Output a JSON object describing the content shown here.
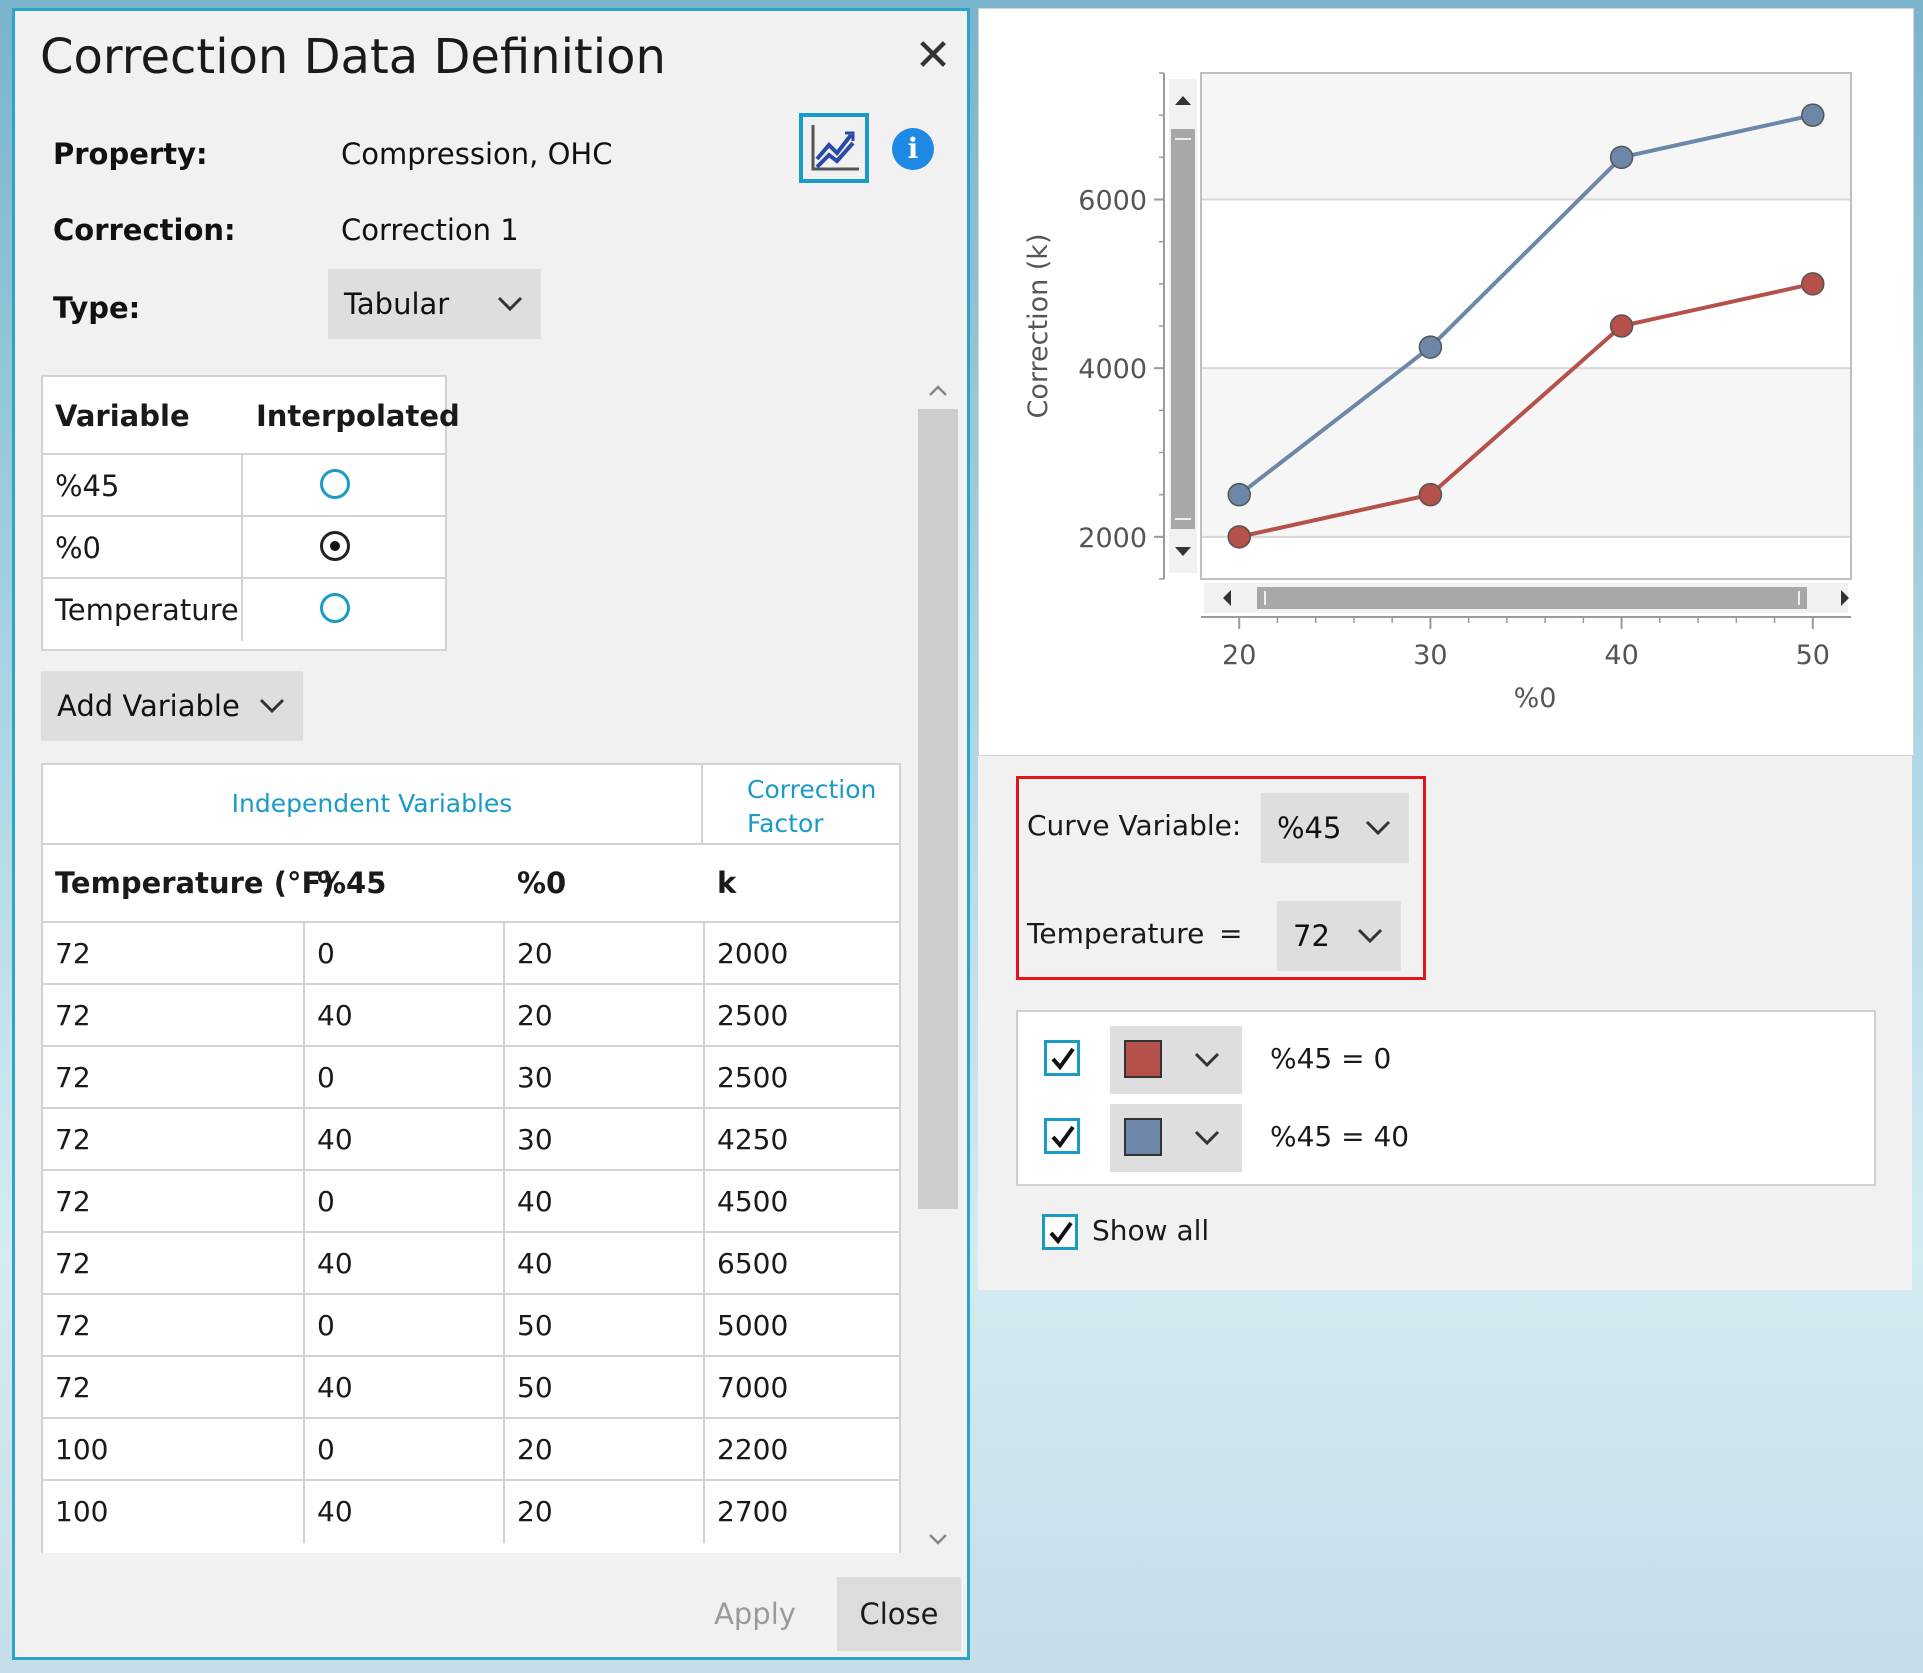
{
  "dialog": {
    "title": "Correction Data Definition",
    "close_glyph": "✕",
    "property_label": "Property:",
    "property_value": "Compression, OHC",
    "correction_label": "Correction:",
    "correction_value": "Correction 1",
    "type_label": "Type:",
    "type_value": "Tabular",
    "info_glyph": "i",
    "chart_icon": "line-chart-icon"
  },
  "variables": {
    "headers": [
      "Variable",
      "Interpolated"
    ],
    "rows": [
      {
        "name": "%45",
        "interpolated": false
      },
      {
        "name": "%0",
        "interpolated": true
      },
      {
        "name": "Temperature",
        "interpolated": false
      }
    ],
    "add_button": "Add Variable"
  },
  "data_table": {
    "group_independent": "Independent Variables",
    "group_factor_line1": "Correction",
    "group_factor_line2": "Factor",
    "columns": [
      "Temperature (°F)",
      "%45",
      "%0",
      "k"
    ],
    "rows": [
      [
        "72",
        "0",
        "20",
        "2000"
      ],
      [
        "72",
        "40",
        "20",
        "2500"
      ],
      [
        "72",
        "0",
        "30",
        "2500"
      ],
      [
        "72",
        "40",
        "30",
        "4250"
      ],
      [
        "72",
        "0",
        "40",
        "4500"
      ],
      [
        "72",
        "40",
        "40",
        "6500"
      ],
      [
        "72",
        "0",
        "50",
        "5000"
      ],
      [
        "72",
        "40",
        "50",
        "7000"
      ],
      [
        "100",
        "0",
        "20",
        "2200"
      ],
      [
        "100",
        "40",
        "20",
        "2700"
      ]
    ]
  },
  "buttons": {
    "apply": "Apply",
    "close": "Close"
  },
  "curve_settings": {
    "curve_variable_label": "Curve Variable:",
    "curve_variable_value": "%45",
    "temperature_label": "Temperature",
    "equals": "=",
    "temperature_value": "72"
  },
  "legend": {
    "items": [
      {
        "label": "%45  =  0",
        "color": "#b5504a",
        "checked": true
      },
      {
        "label": "%45  =  40",
        "color": "#6c87a8",
        "checked": true
      }
    ],
    "show_all": "Show all"
  },
  "chart_data": {
    "type": "line",
    "xlabel": "%0",
    "ylabel": "Correction (k)",
    "x_ticks": [
      "20",
      "30",
      "40",
      "50"
    ],
    "y_ticks": [
      "2000",
      "4000",
      "6000"
    ],
    "xlim": [
      18,
      52
    ],
    "ylim": [
      1500,
      7500
    ],
    "grid": true,
    "series": [
      {
        "name": "%45  =  0",
        "color": "#b5504a",
        "x": [
          20,
          30,
          40,
          50
        ],
        "y": [
          2000,
          2500,
          4500,
          5000
        ]
      },
      {
        "name": "%45  =  40",
        "color": "#6c87a8",
        "x": [
          20,
          30,
          40,
          50
        ],
        "y": [
          2500,
          4250,
          6500,
          7000
        ]
      }
    ]
  }
}
